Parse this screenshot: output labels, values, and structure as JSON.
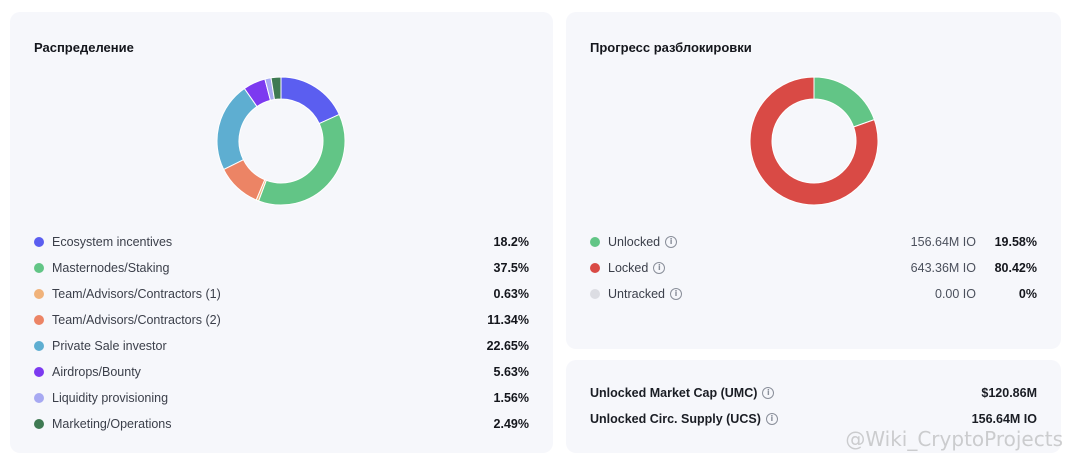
{
  "distribution": {
    "title": "Распределение",
    "items": [
      {
        "label": "Ecosystem incentives",
        "value": "18.2%",
        "pct": 18.2,
        "color": "#5b5ef0"
      },
      {
        "label": "Masternodes/Staking",
        "value": "37.5%",
        "pct": 37.5,
        "color": "#62c586"
      },
      {
        "label": "Team/Advisors/Contractors (1)",
        "value": "0.63%",
        "pct": 0.63,
        "color": "#f0b27a"
      },
      {
        "label": "Team/Advisors/Contractors (2)",
        "value": "11.34%",
        "pct": 11.34,
        "color": "#ec8465"
      },
      {
        "label": "Private Sale investor",
        "value": "22.65%",
        "pct": 22.65,
        "color": "#5eaed1"
      },
      {
        "label": "Airdrops/Bounty",
        "value": "5.63%",
        "pct": 5.63,
        "color": "#7c3af0"
      },
      {
        "label": "Liquidity provisioning",
        "value": "1.56%",
        "pct": 1.56,
        "color": "#a7a9f2"
      },
      {
        "label": "Marketing/Operations",
        "value": "2.49%",
        "pct": 2.49,
        "color": "#3f7a53"
      }
    ]
  },
  "unlock": {
    "title": "Прогресс разблокировки",
    "items": [
      {
        "label": "Unlocked",
        "amount": "156.64M IO",
        "value": "19.58%",
        "pct": 19.58,
        "color": "#62c586"
      },
      {
        "label": "Locked",
        "amount": "643.36M IO",
        "value": "80.42%",
        "pct": 80.42,
        "color": "#d94a45"
      },
      {
        "label": "Untracked",
        "amount": "0.00 IO",
        "value": "0%",
        "pct": 0,
        "color": "#dcdde3"
      }
    ]
  },
  "market": {
    "umc_label": "Unlocked Market Cap (UMC)",
    "umc_value": "$120.86M",
    "ucs_label": "Unlocked Circ. Supply (UCS)",
    "ucs_value": "156.64M IO"
  },
  "watermark": "@Wiki_CryptoProjects",
  "icons": {
    "info": "info-icon"
  }
}
